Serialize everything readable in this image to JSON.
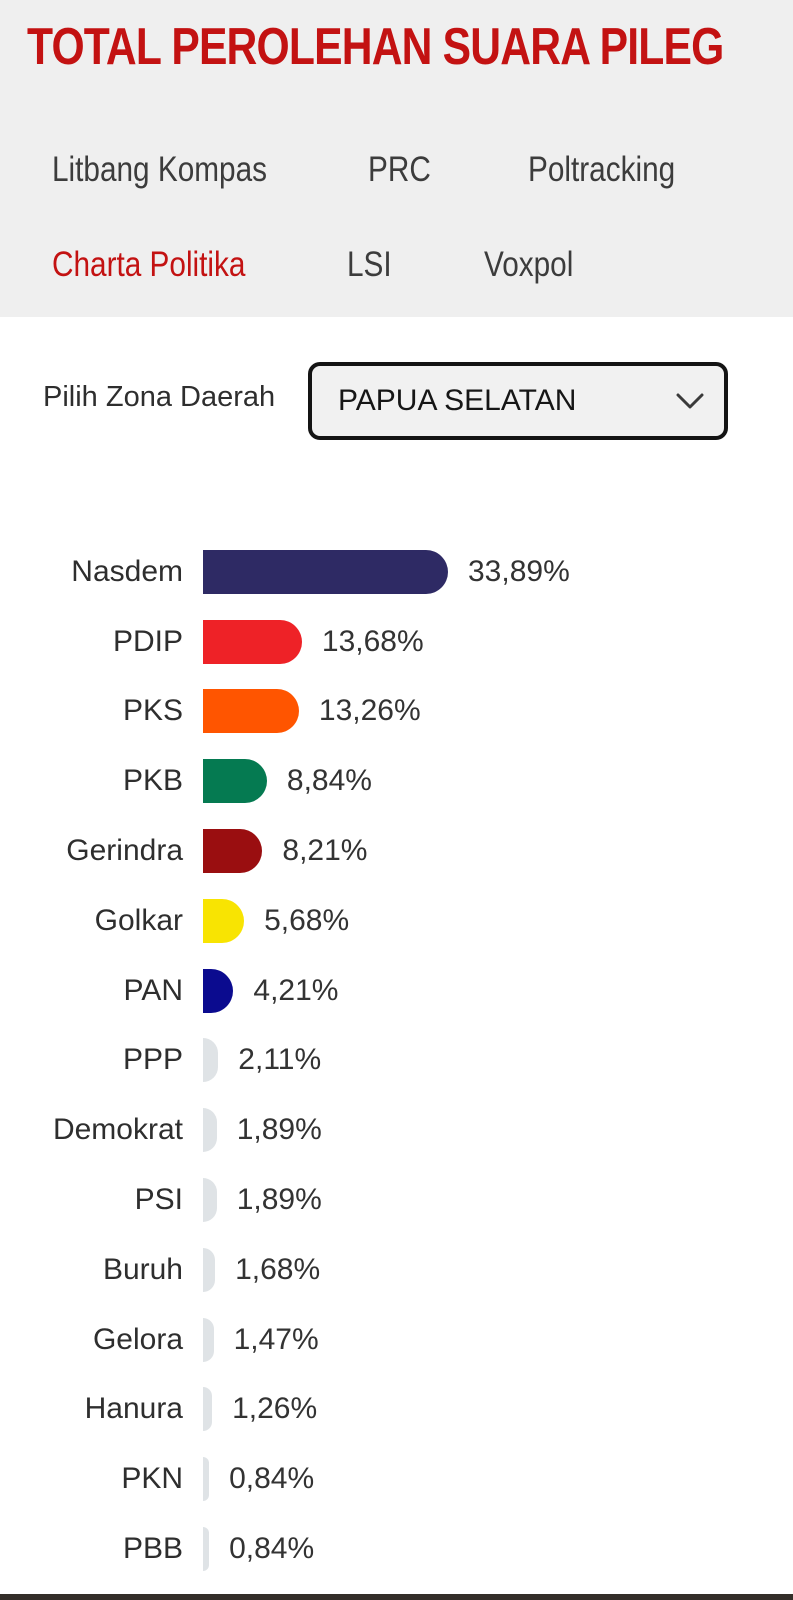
{
  "header": {
    "title": "TOTAL PEROLEHAN SUARA PILEG",
    "tabs": [
      {
        "label": "Litbang Kompas",
        "active": false
      },
      {
        "label": "PRC",
        "active": false
      },
      {
        "label": "Poltracking",
        "active": false
      },
      {
        "label": "Charta Politika",
        "active": true
      },
      {
        "label": "LSI",
        "active": false
      },
      {
        "label": "Voxpol",
        "active": false
      }
    ]
  },
  "zone_selector": {
    "label": "Pilih Zona Daerah",
    "selected_value": "PAPUA SELATAN",
    "chevron_icon": "chevron-down"
  },
  "chart_data": {
    "type": "bar",
    "orientation": "horizontal",
    "title": "TOTAL PEROLEHAN SUARA PILEG",
    "source_tab": "Charta Politika",
    "zone": "PAPUA SELATAN",
    "unit": "%",
    "categories": [
      "Nasdem",
      "PDIP",
      "PKS",
      "PKB",
      "Gerindra",
      "Golkar",
      "PAN",
      "PPP",
      "Demokrat",
      "PSI",
      "Buruh",
      "Gelora",
      "Hanura",
      "PKN",
      "PBB"
    ],
    "values": [
      33.89,
      13.68,
      13.26,
      8.84,
      8.21,
      5.68,
      4.21,
      2.11,
      1.89,
      1.89,
      1.68,
      1.47,
      1.26,
      0.84,
      0.84
    ],
    "value_labels": [
      "33,89%",
      "13,68%",
      "13,26%",
      "8,84%",
      "8,21%",
      "5,68%",
      "4,21%",
      "2,11%",
      "1,89%",
      "1,89%",
      "1,68%",
      "1,47%",
      "1,26%",
      "0,84%",
      "0,84%"
    ],
    "bar_colors": [
      "#2e2a64",
      "#ee2227",
      "#ff5500",
      "#057a51",
      "#9a0e10",
      "#f8e402",
      "#0b0b8f",
      "#dfe3e6",
      "#dfe3e6",
      "#dfe3e6",
      "#dfe3e6",
      "#dfe3e6",
      "#dfe3e6",
      "#dfe3e6",
      "#dfe3e6"
    ],
    "axis": "none",
    "grid": false,
    "legend": false
  },
  "colors": {
    "accent_red": "#c31212",
    "header_bg": "#efefef",
    "tab_text": "#3c3c3c",
    "body_bg": "#ffffff",
    "select_bg": "#f1f1f1",
    "select_border": "#141414",
    "text_dark": "#2e2e2e",
    "bottom_bar": "#332e29"
  }
}
